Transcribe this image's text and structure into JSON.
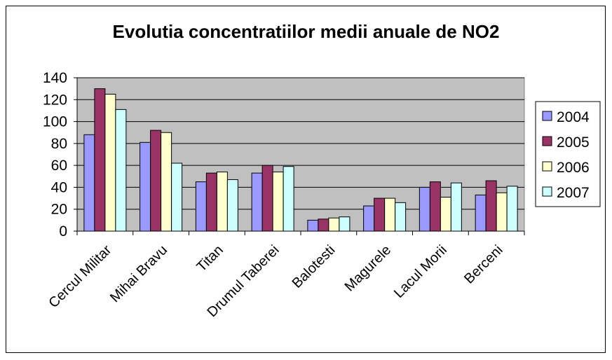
{
  "chart_data": {
    "type": "bar",
    "title": "Evolutia concentratiilor medii anuale de NO2",
    "xlabel": "",
    "ylabel": "",
    "ylim": [
      0,
      140
    ],
    "yticks": [
      0,
      20,
      40,
      60,
      80,
      100,
      120,
      140
    ],
    "grid": true,
    "legend_position": "right",
    "categories": [
      "Cercul Militar",
      "Mihai Bravu",
      "Titan",
      "Drumul Taberei",
      "Balotesti",
      "Magurele",
      "Lacul Morii",
      "Berceni"
    ],
    "series": [
      {
        "name": "2004",
        "color": "#9999ff",
        "values": [
          88,
          81,
          45,
          53,
          10,
          23,
          40,
          33
        ]
      },
      {
        "name": "2005",
        "color": "#993366",
        "values": [
          130,
          92,
          53,
          60,
          11,
          30,
          45,
          46
        ]
      },
      {
        "name": "2006",
        "color": "#ffffcc",
        "values": [
          125,
          90,
          54,
          54,
          12,
          30,
          31,
          35
        ]
      },
      {
        "name": "2007",
        "color": "#ccffff",
        "values": [
          111,
          62,
          47,
          59,
          13,
          26,
          44,
          41
        ]
      }
    ],
    "plot_background": "#c0c0c0"
  }
}
